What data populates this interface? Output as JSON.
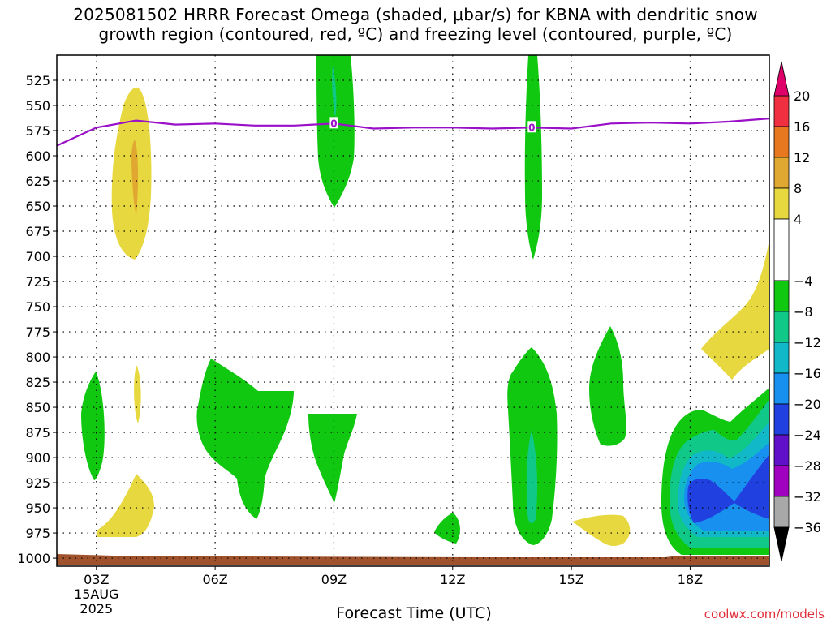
{
  "title_line1": "2025081502 HRRR Forecast Omega (shaded, μbar/s) for KBNA with dendritic snow",
  "title_line2": "growth region (contoured, red, ºC) and freezing level (contoured, purple, ºC)",
  "credit": "coolwx.com/models",
  "chart_data": {
    "type": "heatmap",
    "title": "2025081502 HRRR Forecast Omega (shaded, μbar/s) for KBNA with dendritic snow growth region (contoured, red, ºC) and freezing level (contoured, purple, ºC)",
    "xlabel": "Forecast Time (UTC)",
    "ylabel": "",
    "x_range_hours_utc": [
      2,
      20
    ],
    "x_ticks": [
      {
        "hour": 3,
        "label": "03Z",
        "sub1": "15AUG",
        "sub2": "2025"
      },
      {
        "hour": 6,
        "label": "06Z"
      },
      {
        "hour": 9,
        "label": "09Z"
      },
      {
        "hour": 12,
        "label": "12Z"
      },
      {
        "hour": 15,
        "label": "15Z"
      },
      {
        "hour": 18,
        "label": "18Z"
      }
    ],
    "y_range_hPa": [
      500,
      1008
    ],
    "y_ticks": [
      525,
      550,
      575,
      600,
      625,
      650,
      675,
      700,
      725,
      750,
      775,
      800,
      825,
      850,
      875,
      900,
      925,
      950,
      975,
      1000
    ],
    "grid": true,
    "colorbar": {
      "position": "right",
      "labels": [
        "20",
        "16",
        "12",
        "8",
        "4",
        "−4",
        "−8",
        "−12",
        "−16",
        "−20",
        "−24",
        "−28",
        "−32",
        "−36"
      ],
      "bands": [
        {
          "from": 16,
          "to": 20,
          "color": "#f03040"
        },
        {
          "from": 12,
          "to": 16,
          "color": "#e87820"
        },
        {
          "from": 8,
          "to": 12,
          "color": "#e0a830"
        },
        {
          "from": 4,
          "to": 8,
          "color": "#e8d840"
        },
        {
          "from": -4,
          "to": 4,
          "color": "#ffffff"
        },
        {
          "from": -8,
          "to": -4,
          "color": "#10c810"
        },
        {
          "from": -12,
          "to": -8,
          "color": "#10c888"
        },
        {
          "from": -16,
          "to": -12,
          "color": "#10b8c8"
        },
        {
          "from": -20,
          "to": -16,
          "color": "#1890f0"
        },
        {
          "from": -24,
          "to": -20,
          "color": "#2040e0"
        },
        {
          "from": -28,
          "to": -24,
          "color": "#6010c8"
        },
        {
          "from": -32,
          "to": -28,
          "color": "#a000c0"
        },
        {
          "from": -36,
          "to": -32,
          "color": "#a8a8a8"
        }
      ],
      "over_color": "#e0006a",
      "under_color": "#000000"
    },
    "freezing_level": {
      "color": "#9a10c8",
      "label": "0",
      "points": [
        [
          2,
          590
        ],
        [
          3,
          572
        ],
        [
          4,
          565
        ],
        [
          5,
          569
        ],
        [
          6,
          568
        ],
        [
          7,
          570
        ],
        [
          8,
          570
        ],
        [
          9,
          568
        ],
        [
          10,
          573
        ],
        [
          11,
          572
        ],
        [
          12,
          572
        ],
        [
          13,
          573
        ],
        [
          14,
          572
        ],
        [
          15,
          573
        ],
        [
          16,
          568
        ],
        [
          17,
          567
        ],
        [
          18,
          568
        ],
        [
          19,
          566
        ],
        [
          20,
          563
        ]
      ]
    },
    "dendritic_region": {
      "color": "#e03030",
      "shown": false
    },
    "surface_color": "#a0522d"
  }
}
